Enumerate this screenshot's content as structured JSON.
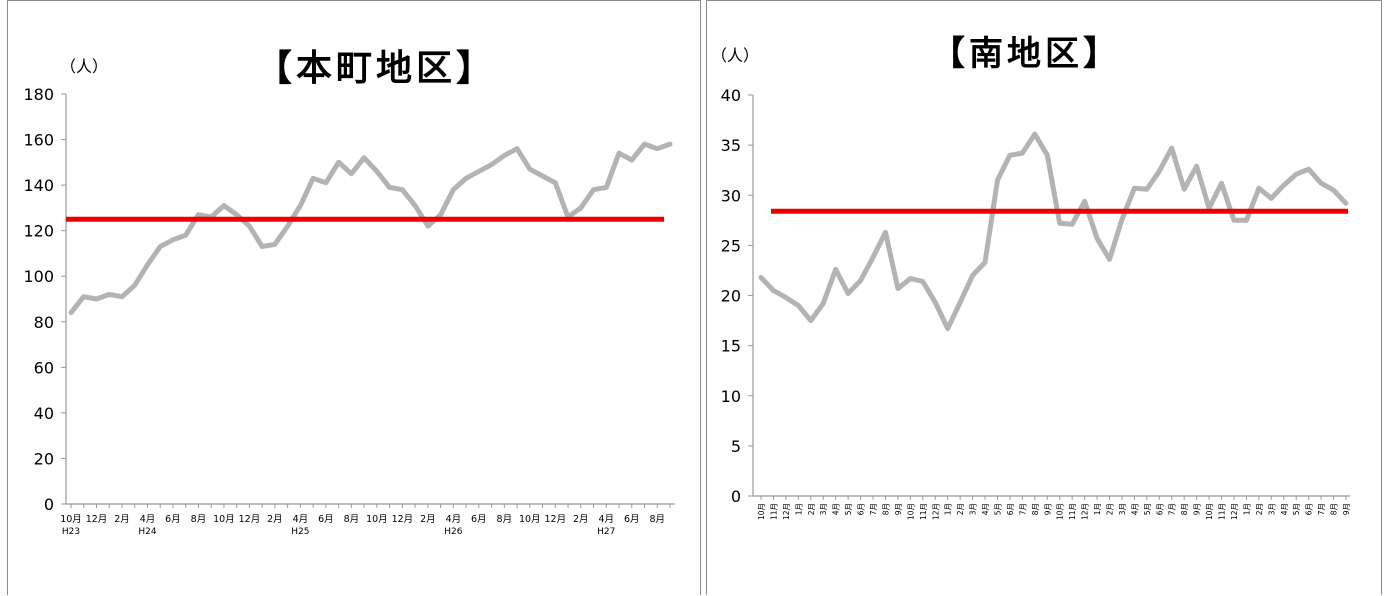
{
  "colors": {
    "series": "#b3b3b3",
    "average": "#ee0000",
    "axis": "#999999",
    "border": "#8c8c8c"
  },
  "chart_data": [
    {
      "type": "line",
      "title": "【本町地区】",
      "unit_label": "（人）",
      "ylim": [
        0,
        180
      ],
      "y_ticks": [
        0,
        20,
        40,
        60,
        80,
        100,
        120,
        140,
        160,
        180
      ],
      "grid": false,
      "legend": "none",
      "x_tick_labels": [
        "10月",
        "12月",
        "2月",
        "4月",
        "6月",
        "8月",
        "10月",
        "12月",
        "2月",
        "4月",
        "6月",
        "8月",
        "10月",
        "12月",
        "2月",
        "4月",
        "6月",
        "8月",
        "10月",
        "12月",
        "2月",
        "4月",
        "6月",
        "8月"
      ],
      "x_year_labels": [
        {
          "index": 0,
          "label": "H23"
        },
        {
          "index": 6,
          "label": "H24"
        },
        {
          "index": 18,
          "label": "H25"
        },
        {
          "index": 30,
          "label": "H26"
        },
        {
          "index": 42,
          "label": "H27"
        }
      ],
      "series": [
        {
          "values": [
            84,
            91,
            90,
            92,
            91,
            96,
            105,
            113,
            116,
            118,
            127,
            126,
            131,
            127,
            122,
            113,
            114,
            122,
            131,
            143,
            141,
            150,
            145,
            152,
            146,
            139,
            138,
            131,
            122,
            127,
            138,
            143,
            146,
            149,
            153,
            156,
            147,
            144,
            141,
            126,
            130,
            138,
            139,
            154,
            151,
            158,
            156,
            158
          ]
        }
      ],
      "average_line": 125
    },
    {
      "type": "line",
      "title": "【南地区】",
      "unit_label": "（人）",
      "ylim": [
        0,
        40
      ],
      "y_ticks": [
        0,
        5,
        10,
        15,
        20,
        25,
        30,
        35,
        40
      ],
      "grid": false,
      "legend": "none",
      "x_tick_labels": [
        "10月",
        "11月",
        "12月",
        "1月",
        "2月",
        "3月",
        "4月",
        "5月",
        "6月",
        "7月",
        "8月",
        "9月",
        "10月",
        "11月",
        "12月",
        "1月",
        "2月",
        "3月",
        "4月",
        "5月",
        "6月",
        "7月",
        "8月",
        "9月",
        "10月",
        "11月",
        "12月",
        "1月",
        "2月",
        "3月",
        "4月",
        "5月",
        "6月",
        "7月",
        "8月",
        "9月",
        "10月",
        "11月",
        "12月",
        "1月",
        "2月",
        "3月",
        "4月",
        "5月",
        "6月",
        "7月",
        "8月",
        "9月"
      ],
      "series": [
        {
          "values": [
            21.8,
            20.5,
            19.8,
            19.0,
            17.5,
            19.2,
            22.6,
            20.2,
            21.5,
            23.8,
            26.3,
            20.7,
            21.7,
            21.4,
            19.3,
            16.7,
            19.3,
            22.0,
            23.3,
            31.5,
            34.0,
            34.2,
            36.1,
            34.0,
            27.2,
            27.1,
            29.4,
            25.7,
            23.6,
            27.6,
            30.7,
            30.6,
            32.4,
            34.7,
            30.6,
            32.9,
            28.7,
            31.2,
            27.5,
            27.5,
            30.7,
            29.7,
            31.0,
            32.1,
            32.6,
            31.2,
            30.5,
            29.2
          ]
        }
      ],
      "average_line": 28.4
    }
  ]
}
